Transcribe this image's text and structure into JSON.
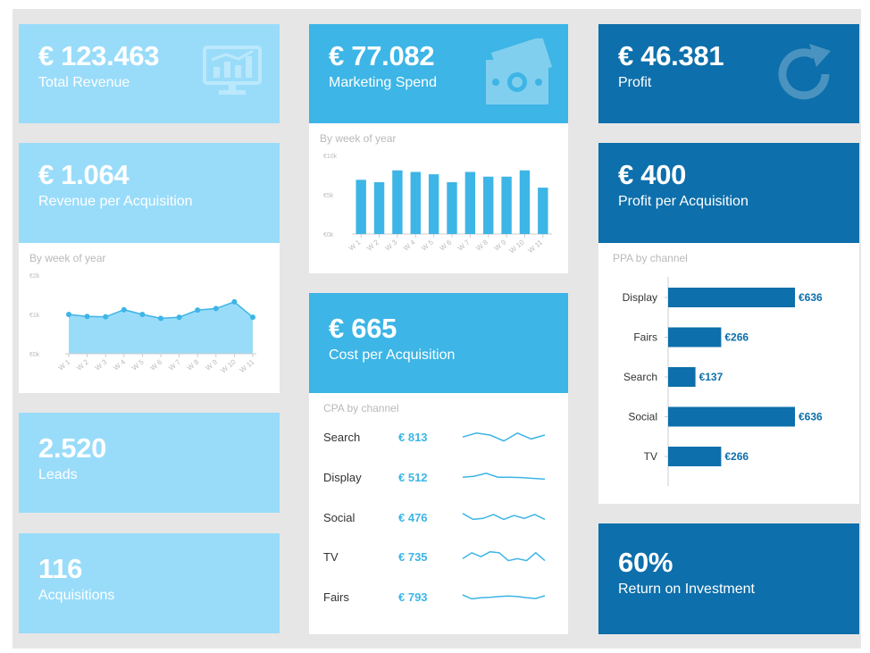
{
  "colors": {
    "light": "#99dcfa",
    "mid": "#3db5e6",
    "dark": "#0d6fab",
    "bg": "#e6e6e6"
  },
  "kpis": {
    "total_revenue": {
      "value": "€ 123.463",
      "label": "Total Revenue",
      "icon": "monitor-chart-icon"
    },
    "marketing_spend": {
      "value": "€ 77.082",
      "label": "Marketing Spend",
      "icon": "banknotes-icon"
    },
    "profit": {
      "value": "€ 46.381",
      "label": "Profit",
      "icon": "refresh-icon"
    },
    "revenue_per_acq": {
      "value": "€ 1.064",
      "label": "Revenue per Acquisition"
    },
    "profit_per_acq": {
      "value": "€ 400",
      "label": "Profit per Acquisition"
    },
    "cost_per_acq": {
      "value": "€ 665",
      "label": "Cost per Acquisition"
    },
    "leads": {
      "value": "2.520",
      "label": "Leads"
    },
    "acquisitions": {
      "value": "116",
      "label": "Acquisitions"
    },
    "roi": {
      "value": "60%",
      "label": "Return on Investment"
    }
  },
  "panels": {
    "marketing_chart_title": "By week of year",
    "revenue_chart_title": "By week of year",
    "ppa_title": "PPA by channel",
    "cpa_title": "CPA by channel"
  },
  "chart_data": [
    {
      "type": "bar",
      "title": "By week of year",
      "categories": [
        "W 1",
        "W 2",
        "W 3",
        "W 4",
        "W 5",
        "W 6",
        "W 7",
        "W 8",
        "W 9",
        "W 10",
        "W 11"
      ],
      "y_ticks": [
        "€10k",
        "€5k",
        "€0k"
      ],
      "ylim": [
        0,
        10000
      ],
      "values": [
        6900,
        6600,
        8100,
        7900,
        7600,
        6600,
        7900,
        7300,
        7300,
        8100,
        5900
      ],
      "grid": false
    },
    {
      "type": "area",
      "title": "By week of year",
      "categories": [
        "W 1",
        "W 2",
        "W 3",
        "W 4",
        "W 5",
        "W 6",
        "W 7",
        "W 8",
        "W 9",
        "W 10",
        "W 11"
      ],
      "y_ticks": [
        "€2k",
        "€1k",
        "€0k"
      ],
      "ylim": [
        0,
        2000
      ],
      "values": [
        1000,
        950,
        940,
        1120,
        1000,
        900,
        930,
        1110,
        1150,
        1320,
        930
      ],
      "grid": false
    },
    {
      "type": "bar",
      "orientation": "horizontal",
      "title": "PPA by channel",
      "categories": [
        "Display",
        "Fairs",
        "Search",
        "Social",
        "TV"
      ],
      "values": [
        636,
        266,
        137,
        636,
        266
      ],
      "labels": [
        "€636",
        "€266",
        "€137",
        "€636",
        "€266"
      ],
      "xlim": [
        0,
        636
      ]
    },
    {
      "type": "table",
      "title": "CPA by channel",
      "rows": [
        {
          "channel": "Search",
          "value": "€ 813",
          "trend": [
            4,
            6,
            5,
            2,
            6,
            3,
            5
          ]
        },
        {
          "channel": "Display",
          "value": "€ 512",
          "trend": [
            4,
            4.5,
            6,
            4,
            4,
            3.8,
            3.4,
            3
          ]
        },
        {
          "channel": "Social",
          "value": "€ 476",
          "trend": [
            6,
            3,
            3.5,
            5.5,
            3,
            5,
            3.5,
            5.5,
            3
          ]
        },
        {
          "channel": "TV",
          "value": "€ 735",
          "trend": [
            3,
            6,
            4,
            6.5,
            6,
            2,
            3,
            2,
            6,
            2
          ]
        },
        {
          "channel": "Fairs",
          "value": "€ 793",
          "trend": [
            5,
            3,
            3.6,
            3.8,
            4.2,
            4.4,
            4.2,
            3.6,
            3.2,
            4.6
          ]
        }
      ]
    }
  ]
}
